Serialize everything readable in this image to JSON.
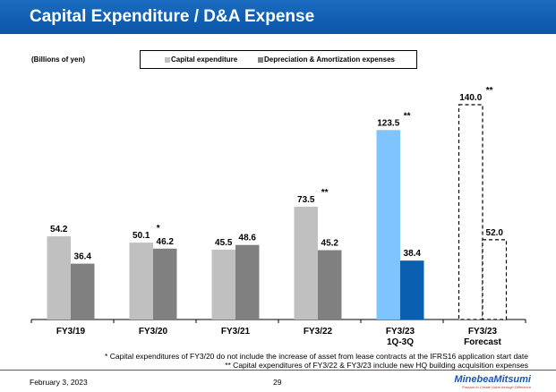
{
  "header": {
    "title": "Capital Expenditure / D&A Expense"
  },
  "footer": {
    "date": "February 3, 2023",
    "page": "29",
    "logo": "MinebeaMitsumi",
    "tagline": "Passion to Create Value through Difference",
    "note1": "* Capital expenditures of FY3/20 do not include the increase of asset from lease contracts at the IFRS16 application start date",
    "note2": "** Capital expenditures of FY3/22 & FY3/23 include new HQ building acquisition expenses"
  },
  "chart_data": {
    "type": "bar",
    "unit_label": "(Billions of yen)",
    "categories": [
      [
        "FY3/19"
      ],
      [
        "FY3/20"
      ],
      [
        "FY3/21"
      ],
      [
        "FY3/22"
      ],
      [
        "FY3/23",
        "1Q-3Q"
      ],
      [
        "FY3/23",
        "Forecast"
      ]
    ],
    "series": [
      {
        "name": "Capital expenditure",
        "values": [
          54.2,
          50.1,
          45.5,
          73.5,
          123.5,
          140.0
        ],
        "color": "#c0c0c0",
        "annotations": [
          "",
          "*",
          "",
          "**",
          "**",
          "**"
        ]
      },
      {
        "name": "Depreciation & Amortization expenses",
        "values": [
          36.4,
          46.2,
          48.6,
          45.2,
          38.4,
          52.0
        ],
        "color": "#808080"
      }
    ],
    "highlight_colors": {
      "capex_1q3q": "#7fc4ff",
      "da_1q3q": "#0a5fb0"
    },
    "forecast_style": "dashed-outline",
    "ylim": [
      0,
      140
    ],
    "grid": false,
    "legend": "top"
  }
}
